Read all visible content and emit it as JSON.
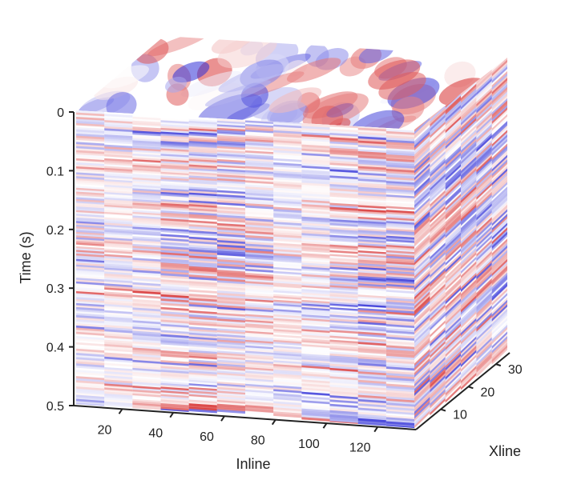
{
  "chart_data": {
    "type": "heatmap",
    "title": "",
    "colormap": {
      "negative": "#2b2bd6",
      "zero": "#ffffff",
      "positive": "#d62b2b"
    },
    "axes": {
      "time": {
        "label": "Time (s)",
        "range": [
          0,
          0.5
        ],
        "ticks": [
          0,
          0.1,
          0.2,
          0.3,
          0.4,
          0.5
        ],
        "tick_labels": [
          "0",
          "0.1",
          "0.2",
          "0.3",
          "0.4",
          "0.5"
        ]
      },
      "inline": {
        "label": "Inline",
        "range": [
          1,
          135
        ],
        "ticks": [
          20,
          40,
          60,
          80,
          100,
          120
        ],
        "tick_labels": [
          "20",
          "40",
          "60",
          "80",
          "100",
          "120"
        ]
      },
      "xline": {
        "label": "Xline",
        "range": [
          1,
          35
        ],
        "ticks": [
          10,
          20,
          30
        ],
        "tick_labels": [
          "10",
          "20",
          "30"
        ]
      }
    }
  }
}
